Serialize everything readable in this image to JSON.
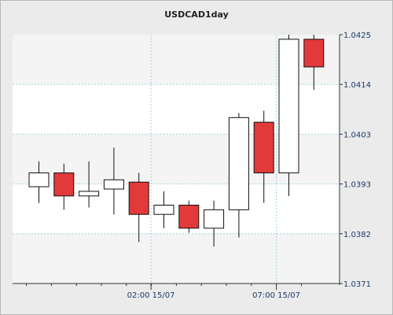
{
  "chart_data": {
    "type": "candlestick",
    "title": "USDCAD1day",
    "y_ticks": [
      "1.0425",
      "1.0414",
      "1.0403",
      "1.0393",
      "1.0382",
      "1.0371"
    ],
    "x_ticks": [
      "02:00 15/07",
      "07:00 15/07"
    ],
    "ylim": [
      1.0371,
      1.0425
    ],
    "grid": true,
    "colors": {
      "bullish_fill": "#ffffff",
      "bearish_fill": "#e23a3a",
      "outline": "#111111",
      "grid": "#9fd6e0",
      "band": "#f4f4f4"
    },
    "candles": [
      {
        "open": 1.0392,
        "high": 1.03975,
        "low": 1.03885,
        "close": 1.0395
      },
      {
        "open": 1.0395,
        "high": 1.0397,
        "low": 1.0387,
        "close": 1.039
      },
      {
        "open": 1.039,
        "high": 1.03975,
        "low": 1.03875,
        "close": 1.0391
      },
      {
        "open": 1.03915,
        "high": 1.04005,
        "low": 1.0386,
        "close": 1.03935
      },
      {
        "open": 1.0393,
        "high": 1.0395,
        "low": 1.038,
        "close": 1.0386
      },
      {
        "open": 1.0386,
        "high": 1.0391,
        "low": 1.0383,
        "close": 1.0388
      },
      {
        "open": 1.0388,
        "high": 1.0389,
        "low": 1.0382,
        "close": 1.0383
      },
      {
        "open": 1.0383,
        "high": 1.0389,
        "low": 1.0379,
        "close": 1.0387
      },
      {
        "open": 1.0387,
        "high": 1.0408,
        "low": 1.0381,
        "close": 1.0407
      },
      {
        "open": 1.0406,
        "high": 1.04085,
        "low": 1.03885,
        "close": 1.0395
      },
      {
        "open": 1.0395,
        "high": 1.0425,
        "low": 1.039,
        "close": 1.0424
      },
      {
        "open": 1.0424,
        "high": 1.0425,
        "low": 1.0413,
        "close": 1.0418
      }
    ]
  }
}
